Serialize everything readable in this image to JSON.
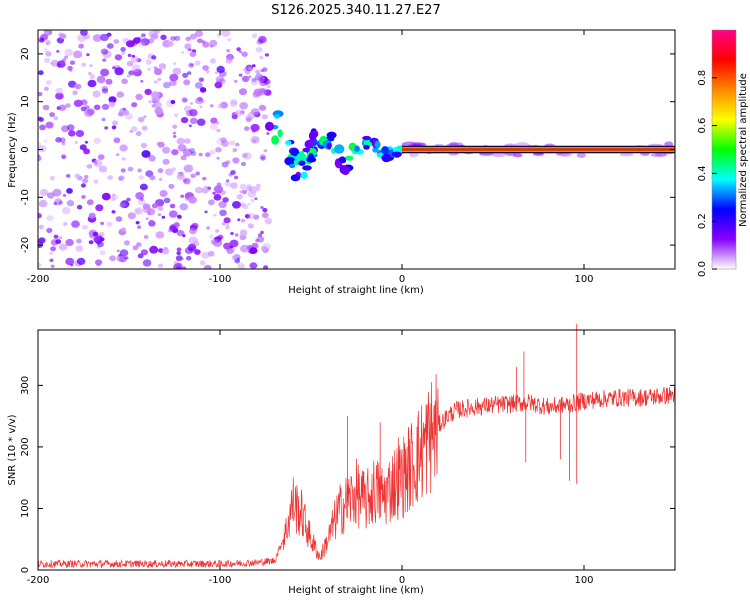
{
  "title": "S126.2025.340.11.27.E27",
  "chart_data": [
    {
      "type": "heatmap",
      "title": "S126.2025.340.11.27.E27",
      "xlabel": "Height of straight line (km)",
      "ylabel": "Frequency (Hz)",
      "xlim": [
        -200,
        150
      ],
      "ylim": [
        -25,
        25
      ],
      "xticks": [
        -200,
        -100,
        0,
        100
      ],
      "yticks": [
        -20,
        -10,
        0,
        10,
        20
      ],
      "colorbar": {
        "label": "Normalized spectral amplitude",
        "range": [
          0,
          1
        ],
        "ticks": [
          "0.0",
          "0.2",
          "0.4",
          "0.6",
          "0.8"
        ],
        "colormap": [
          "#ffffff",
          "#8800ff",
          "#0000ff",
          "#00ffff",
          "#00ff00",
          "#ffff00",
          "#ff8800",
          "#ff0000",
          "#ff0088"
        ]
      },
      "features": {
        "noise_region_x": [
          -200,
          -73
        ],
        "transition_region_x": [
          -73,
          0
        ],
        "tone_region_x": [
          0,
          150
        ],
        "tone_frequency_hz": 0
      }
    },
    {
      "type": "line",
      "xlabel": "Height of straight line (km)",
      "ylabel": "SNR (10 * v/v)",
      "xlim": [
        -200,
        150
      ],
      "ylim": [
        0,
        390
      ],
      "xticks": [
        -200,
        -100,
        0,
        100
      ],
      "yticks": [
        0,
        100,
        200,
        300
      ],
      "color": "#ee3333",
      "series": [
        {
          "name": "SNR",
          "x": [
            -200,
            -150,
            -100,
            -80,
            -70,
            -64,
            -60,
            -55,
            -50,
            -45,
            -40,
            -35,
            -30,
            -25,
            -20,
            -15,
            -10,
            -5,
            0,
            5,
            10,
            15,
            20,
            25,
            30,
            40,
            50,
            60,
            70,
            80,
            90,
            100,
            110,
            120,
            130,
            140,
            150
          ],
          "y": [
            10,
            10,
            10,
            12,
            15,
            60,
            110,
            90,
            50,
            20,
            55,
            95,
            110,
            125,
            110,
            130,
            120,
            140,
            150,
            170,
            190,
            215,
            235,
            250,
            260,
            265,
            268,
            270,
            272,
            265,
            268,
            275,
            278,
            280,
            280,
            282,
            285
          ]
        }
      ],
      "spikes": [
        {
          "x": 63,
          "y": 330
        },
        {
          "x": 67,
          "y": 355
        },
        {
          "x": 68,
          "y": 175
        },
        {
          "x": 87,
          "y": 180
        },
        {
          "x": 92,
          "y": 145
        },
        {
          "x": 96,
          "y": 400
        },
        {
          "x": 96,
          "y": 140
        },
        {
          "x": -30,
          "y": 250
        },
        {
          "x": -12,
          "y": 240
        },
        {
          "x": -2,
          "y": 215
        }
      ]
    }
  ]
}
